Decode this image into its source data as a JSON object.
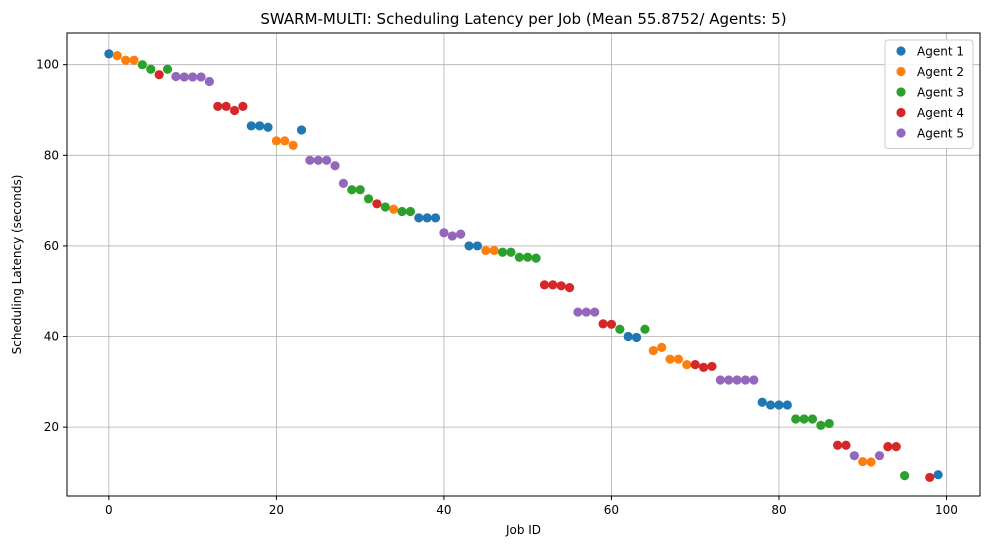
{
  "chart_data": {
    "type": "scatter",
    "title": "SWARM-MULTI: Scheduling Latency per Job (Mean 55.8752/ Agents: 5)",
    "xlabel": "Job ID",
    "ylabel": "Scheduling Latency (seconds)",
    "xlim": [
      -5,
      104
    ],
    "ylim": [
      4.8,
      107
    ],
    "xticks": [
      0,
      20,
      40,
      60,
      80,
      100
    ],
    "yticks": [
      20,
      40,
      60,
      80,
      100
    ],
    "grid": true,
    "legend_position": "top-right",
    "series": [
      {
        "name": "Agent 1",
        "color": "#1f77b4",
        "points": [
          [
            0,
            102.4
          ],
          [
            17,
            86.5
          ],
          [
            18,
            86.5
          ],
          [
            19,
            86.2
          ],
          [
            23,
            85.6
          ],
          [
            37,
            66.2
          ],
          [
            38,
            66.2
          ],
          [
            39,
            66.2
          ],
          [
            43,
            60.0
          ],
          [
            44,
            60.0
          ],
          [
            62,
            40.0
          ],
          [
            63,
            39.8
          ],
          [
            78,
            25.5
          ],
          [
            79,
            24.9
          ],
          [
            80,
            24.9
          ],
          [
            81,
            24.9
          ],
          [
            99,
            9.5
          ]
        ]
      },
      {
        "name": "Agent 2",
        "color": "#ff7f0e",
        "points": [
          [
            1,
            102.0
          ],
          [
            2,
            101.0
          ],
          [
            3,
            101.0
          ],
          [
            20,
            83.2
          ],
          [
            21,
            83.2
          ],
          [
            22,
            82.2
          ],
          [
            34,
            68.1
          ],
          [
            45,
            59.0
          ],
          [
            46,
            59.0
          ],
          [
            65,
            36.9
          ],
          [
            66,
            37.6
          ],
          [
            67,
            35.0
          ],
          [
            68,
            35.0
          ],
          [
            69,
            33.8
          ],
          [
            90,
            12.4
          ],
          [
            91,
            12.3
          ]
        ]
      },
      {
        "name": "Agent 3",
        "color": "#2ca02c",
        "points": [
          [
            4,
            100.0
          ],
          [
            5,
            99.0
          ],
          [
            7,
            99.0
          ],
          [
            29,
            72.4
          ],
          [
            30,
            72.4
          ],
          [
            31,
            70.4
          ],
          [
            33,
            68.6
          ],
          [
            35,
            67.6
          ],
          [
            36,
            67.6
          ],
          [
            47,
            58.6
          ],
          [
            48,
            58.6
          ],
          [
            49,
            57.5
          ],
          [
            50,
            57.5
          ],
          [
            51,
            57.3
          ],
          [
            61,
            41.6
          ],
          [
            64,
            41.6
          ],
          [
            82,
            21.8
          ],
          [
            83,
            21.8
          ],
          [
            84,
            21.8
          ],
          [
            85,
            20.4
          ],
          [
            86,
            20.8
          ],
          [
            95,
            9.3
          ]
        ]
      },
      {
        "name": "Agent 4",
        "color": "#d62728",
        "points": [
          [
            6,
            97.8
          ],
          [
            13,
            90.8
          ],
          [
            14,
            90.8
          ],
          [
            15,
            89.9
          ],
          [
            16,
            90.8
          ],
          [
            32,
            69.3
          ],
          [
            52,
            51.4
          ],
          [
            53,
            51.4
          ],
          [
            54,
            51.2
          ],
          [
            55,
            50.8
          ],
          [
            59,
            42.8
          ],
          [
            60,
            42.7
          ],
          [
            70,
            33.8
          ],
          [
            71,
            33.2
          ],
          [
            72,
            33.4
          ],
          [
            87,
            16.0
          ],
          [
            88,
            16.0
          ],
          [
            93,
            15.7
          ],
          [
            94,
            15.7
          ],
          [
            98,
            8.9
          ]
        ]
      },
      {
        "name": "Agent 5",
        "color": "#9467bd",
        "points": [
          [
            8,
            97.4
          ],
          [
            9,
            97.3
          ],
          [
            10,
            97.3
          ],
          [
            11,
            97.3
          ],
          [
            12,
            96.3
          ],
          [
            24,
            78.9
          ],
          [
            25,
            78.9
          ],
          [
            26,
            78.9
          ],
          [
            27,
            77.7
          ],
          [
            28,
            73.8
          ],
          [
            40,
            62.9
          ],
          [
            41,
            62.2
          ],
          [
            42,
            62.6
          ],
          [
            56,
            45.4
          ],
          [
            57,
            45.4
          ],
          [
            58,
            45.4
          ],
          [
            73,
            30.4
          ],
          [
            74,
            30.4
          ],
          [
            75,
            30.4
          ],
          [
            76,
            30.4
          ],
          [
            77,
            30.4
          ],
          [
            89,
            13.7
          ],
          [
            92,
            13.7
          ]
        ]
      }
    ]
  }
}
